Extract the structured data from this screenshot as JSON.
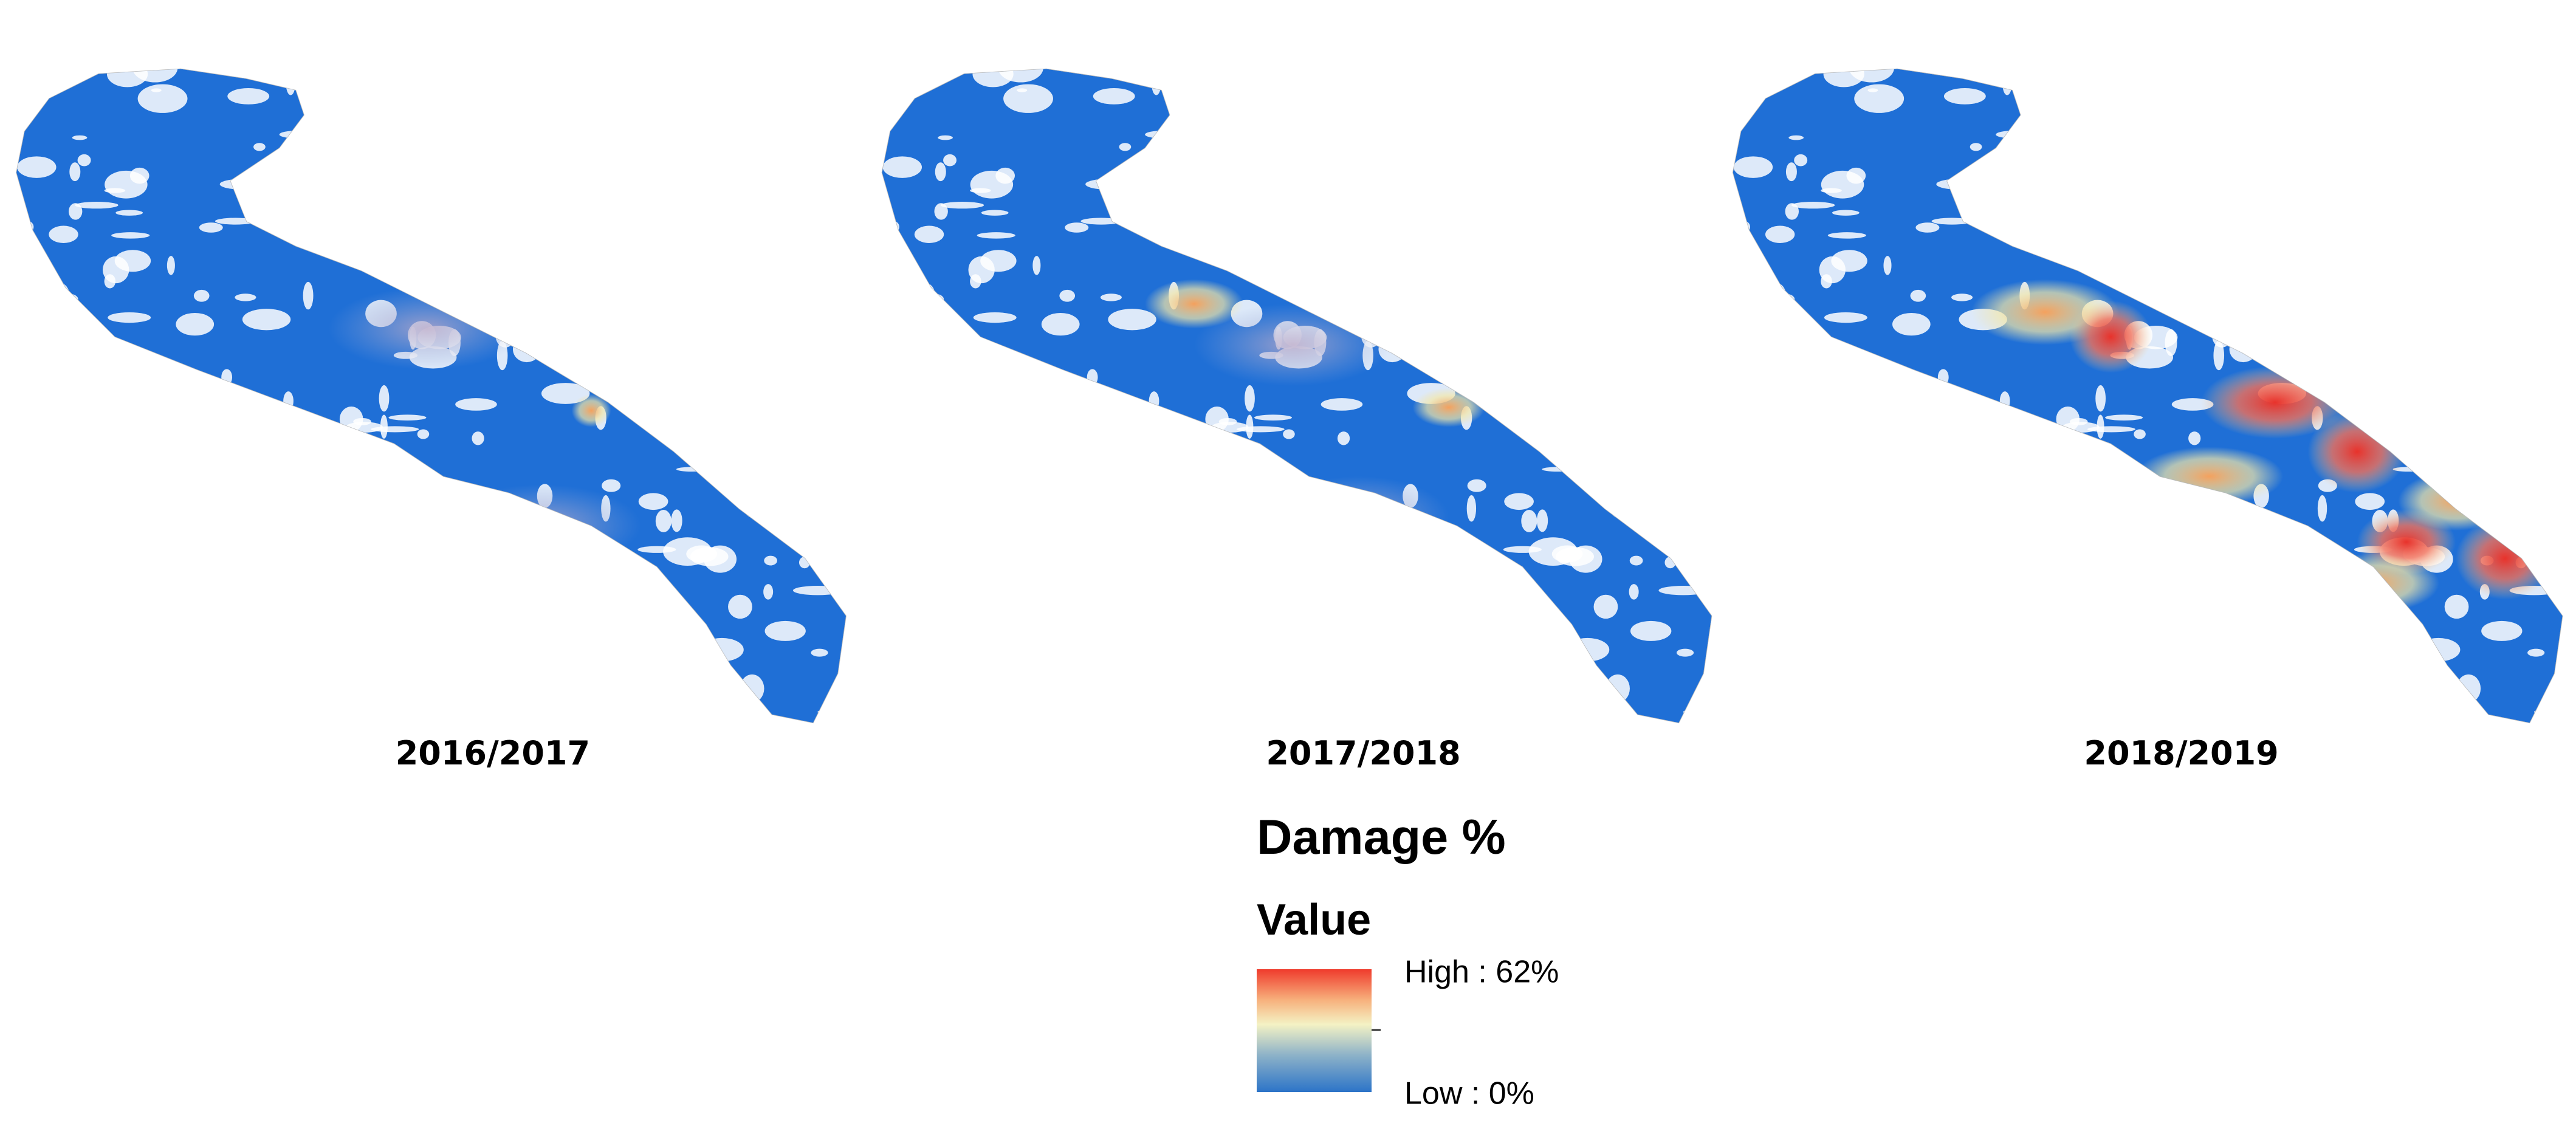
{
  "maps": [
    {
      "label": "2016/2017"
    },
    {
      "label": "2017/2018"
    },
    {
      "label": "2018/2019"
    }
  ],
  "legend": {
    "title": "Damage %",
    "subtitle": "Value",
    "high": "High : 62%",
    "low": "Low : 0%"
  }
}
